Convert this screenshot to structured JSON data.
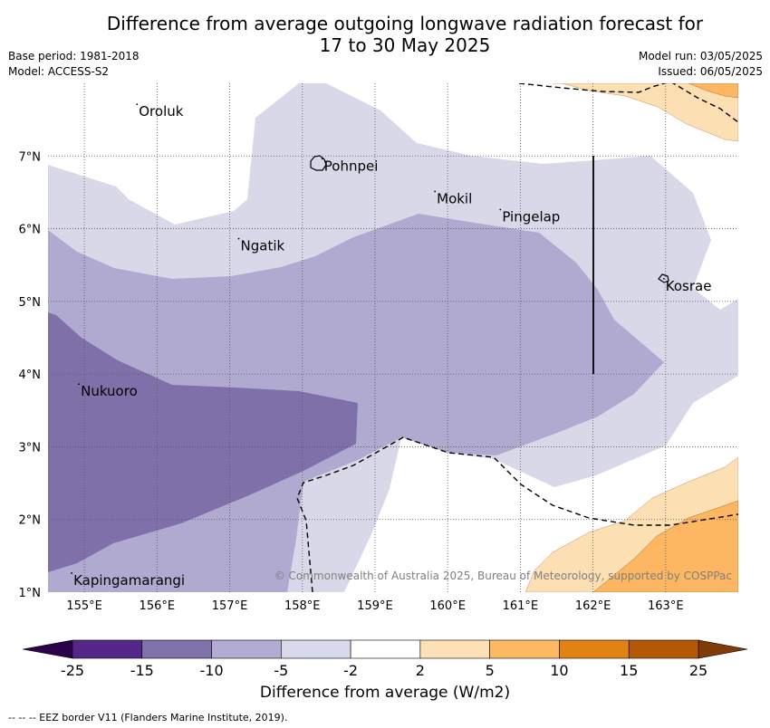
{
  "title": {
    "line1": "Difference from average outgoing longwave radiation forecast for",
    "line2": "17 to 30 May 2025"
  },
  "meta": {
    "base_period": "Base period: 1981-2018",
    "model": "Model: ACCESS-S2",
    "model_run": "Model run: 03/05/2025",
    "issued": "Issued: 06/05/2025"
  },
  "map": {
    "extent": {
      "lon": [
        154.5,
        164.0
      ],
      "lat": [
        1.0,
        8.0
      ]
    },
    "lon_ticks": [
      "155°E",
      "156°E",
      "157°E",
      "158°E",
      "159°E",
      "160°E",
      "161°E",
      "162°E",
      "163°E"
    ],
    "lat_ticks": [
      "1°N",
      "2°N",
      "3°N",
      "4°N",
      "5°N",
      "6°N",
      "7°N"
    ],
    "places": [
      {
        "name": "Oroluk",
        "lon": 155.75,
        "lat": 7.6
      },
      {
        "name": "Pohnpei",
        "lon": 158.3,
        "lat": 6.85
      },
      {
        "name": "Mokil",
        "lon": 159.85,
        "lat": 6.4
      },
      {
        "name": "Pingelap",
        "lon": 160.75,
        "lat": 6.15
      },
      {
        "name": "Ngatik",
        "lon": 157.15,
        "lat": 5.75
      },
      {
        "name": "Kosrae",
        "lon": 163.0,
        "lat": 5.2
      },
      {
        "name": "Nukuoro",
        "lon": 154.95,
        "lat": 3.75
      },
      {
        "name": "Kapingamarangi",
        "lon": 154.85,
        "lat": 1.15
      }
    ],
    "copyright": "© Commonwealth of Australia 2025, Bureau of Meteorology, supported by COSPPac",
    "colors": {
      "lt_-2_-5": "#d8d8e8",
      "lt_-5_-10": "#b0aad0",
      "lt_-10_-15": "#8070aa",
      "gt_2_5": "#fddfb4",
      "gt_5_10": "#fdb661"
    }
  },
  "colorbar": {
    "levels": [
      "-25",
      "-15",
      "-10",
      "-5",
      "-2",
      "2",
      "5",
      "10",
      "15",
      "25"
    ],
    "colors": [
      "#542788",
      "#8073ac",
      "#b2abd2",
      "#d8daeb",
      "#ffffff",
      "#fee0b6",
      "#fdb863",
      "#e08214",
      "#b35806"
    ],
    "under_color": "#2d004b",
    "over_color": "#7f3b08",
    "title": "Difference from average (W/m2)"
  },
  "footer": "--  --  -- EEZ border V11 (Flanders Marine Institute, 2019)."
}
